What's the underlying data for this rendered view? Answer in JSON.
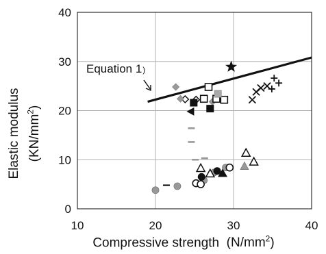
{
  "chart_data": {
    "type": "scatter",
    "xlabel": "Compressive strength",
    "xunit": "(N/mm",
    "xunit_sup": "2",
    "xunit_close": ")",
    "ylabel_line1": "Elastic modulus",
    "ylabel_line2_pre": "(KN/mm",
    "ylabel_line2_sup": "2",
    "ylabel_line2_post": ")",
    "xlim": [
      10,
      40
    ],
    "ylim": [
      0,
      40
    ],
    "x_ticks": [
      10,
      20,
      30,
      40
    ],
    "y_ticks": [
      0,
      10,
      20,
      30,
      40
    ],
    "grid": true,
    "equation_line": {
      "label": "Equation 1",
      "label_suffix": ")",
      "x": [
        19,
        40
      ],
      "y": [
        21.8,
        30.8
      ]
    },
    "series": [
      {
        "marker": "diamond-open",
        "color": "#111111",
        "x": [
          23.8,
          25.2
        ],
        "y": [
          22.3,
          22.2
        ]
      },
      {
        "marker": "diamond-gray",
        "color": "#999999",
        "x": [
          22.6,
          23.2,
          27.3
        ],
        "y": [
          24.8,
          22.4,
          21.8
        ]
      },
      {
        "marker": "square-filled",
        "color": "#111111",
        "x": [
          24.9,
          27.0
        ],
        "y": [
          21.6,
          20.4
        ]
      },
      {
        "marker": "square-open",
        "color": "#111111",
        "x": [
          26.2,
          26.8,
          27.8,
          28.8
        ],
        "y": [
          22.4,
          24.8,
          22.4,
          22.2
        ]
      },
      {
        "marker": "square-gray",
        "color": "#aaaaaa",
        "x": [
          28.0
        ],
        "y": [
          23.4
        ]
      },
      {
        "marker": "triangle-left",
        "color": "#111111",
        "x": [
          24.6
        ],
        "y": [
          19.8
        ]
      },
      {
        "marker": "star",
        "color": "#111111",
        "x": [
          29.7
        ],
        "y": [
          28.9
        ]
      },
      {
        "marker": "cross",
        "color": "#111111",
        "x": [
          32.4,
          32.9,
          33.5,
          34.3
        ],
        "y": [
          22.2,
          23.8,
          24.6,
          25.0
        ]
      },
      {
        "marker": "plus",
        "color": "#111111",
        "x": [
          34.9,
          35.2,
          35.8
        ],
        "y": [
          24.4,
          26.6,
          25.6
        ]
      },
      {
        "marker": "dash",
        "color": "#111111",
        "x": [
          21.4
        ],
        "y": [
          4.8
        ]
      },
      {
        "marker": "dash-gray",
        "color": "#999999",
        "x": [
          24.6,
          24.6,
          25.1,
          26.3
        ],
        "y": [
          16.4,
          13.6,
          10.0,
          10.3
        ]
      },
      {
        "marker": "circle-gray",
        "color": "#999999",
        "x": [
          20.0,
          22.8,
          26.2,
          27.5,
          29.0
        ],
        "y": [
          3.8,
          4.6,
          5.8,
          7.4,
          8.4
        ]
      },
      {
        "marker": "circle-open",
        "color": "#111111",
        "x": [
          25.2,
          25.8,
          29.5
        ],
        "y": [
          5.2,
          5.0,
          8.4
        ]
      },
      {
        "marker": "circle-filled",
        "color": "#111111",
        "x": [
          25.9,
          27.9
        ],
        "y": [
          6.5,
          7.7
        ]
      },
      {
        "marker": "triangle-open",
        "color": "#111111",
        "x": [
          25.8,
          27.0,
          31.6,
          32.6
        ],
        "y": [
          8.3,
          7.2,
          11.4,
          9.6
        ]
      },
      {
        "marker": "triangle-gray",
        "color": "#999999",
        "x": [
          31.4
        ],
        "y": [
          8.7
        ]
      },
      {
        "marker": "triangle-filled",
        "color": "#111111",
        "x": [
          28.6
        ],
        "y": [
          7.2
        ]
      }
    ]
  }
}
